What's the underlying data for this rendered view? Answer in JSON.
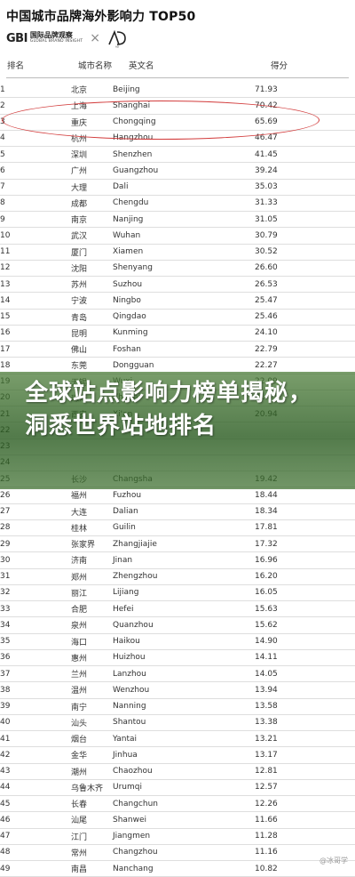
{
  "title": "中国城市品牌海外影响力 TOP50",
  "logos": {
    "gbi_mark": "GBI",
    "gbi_cn": "国际品牌观察",
    "gbi_en": "GLOBAL BRAND INSIGHT",
    "separator": "×",
    "partner_mark": "AD"
  },
  "columns": {
    "rank": "排名",
    "city_cn": "城市名称",
    "city_en": "英文名",
    "score": "得分"
  },
  "rows": [
    {
      "rank": "1",
      "cn": "北京",
      "en": "Beijing",
      "score": "71.93"
    },
    {
      "rank": "2",
      "cn": "上海",
      "en": "Shanghai",
      "score": "70.42"
    },
    {
      "rank": "3",
      "cn": "重庆",
      "en": "Chongqing",
      "score": "65.69"
    },
    {
      "rank": "4",
      "cn": "杭州",
      "en": "Hangzhou",
      "score": "46.47"
    },
    {
      "rank": "5",
      "cn": "深圳",
      "en": "Shenzhen",
      "score": "41.45"
    },
    {
      "rank": "6",
      "cn": "广州",
      "en": "Guangzhou",
      "score": "39.24"
    },
    {
      "rank": "7",
      "cn": "大理",
      "en": "Dali",
      "score": "35.03"
    },
    {
      "rank": "8",
      "cn": "成都",
      "en": "Chengdu",
      "score": "31.33"
    },
    {
      "rank": "9",
      "cn": "南京",
      "en": "Nanjing",
      "score": "31.05"
    },
    {
      "rank": "10",
      "cn": "武汉",
      "en": "Wuhan",
      "score": "30.79"
    },
    {
      "rank": "11",
      "cn": "厦门",
      "en": "Xiamen",
      "score": "30.52"
    },
    {
      "rank": "12",
      "cn": "沈阳",
      "en": "Shenyang",
      "score": "26.60"
    },
    {
      "rank": "13",
      "cn": "苏州",
      "en": "Suzhou",
      "score": "26.53"
    },
    {
      "rank": "14",
      "cn": "宁波",
      "en": "Ningbo",
      "score": "25.47"
    },
    {
      "rank": "15",
      "cn": "青岛",
      "en": "Qingdao",
      "score": "25.46"
    },
    {
      "rank": "16",
      "cn": "昆明",
      "en": "Kunming",
      "score": "24.10"
    },
    {
      "rank": "17",
      "cn": "佛山",
      "en": "Foshan",
      "score": "22.79"
    },
    {
      "rank": "18",
      "cn": "东莞",
      "en": "Dongguan",
      "score": "22.27"
    },
    {
      "rank": "19",
      "cn": "无锡",
      "en": "Wuxi",
      "score": "22.09"
    },
    {
      "rank": "20",
      "cn": "珠海",
      "en": "Zhuhai",
      "score": "21.85"
    },
    {
      "rank": "21",
      "cn": "西安",
      "en": "Xi'an",
      "score": "20.94"
    },
    {
      "rank": "22",
      "cn": "",
      "en": "",
      "score": ""
    },
    {
      "rank": "23",
      "cn": "",
      "en": "",
      "score": ""
    },
    {
      "rank": "24",
      "cn": "",
      "en": "",
      "score": ""
    },
    {
      "rank": "25",
      "cn": "长沙",
      "en": "Changsha",
      "score": "19.42"
    },
    {
      "rank": "26",
      "cn": "福州",
      "en": "Fuzhou",
      "score": "18.44"
    },
    {
      "rank": "27",
      "cn": "大连",
      "en": "Dalian",
      "score": "18.34"
    },
    {
      "rank": "28",
      "cn": "桂林",
      "en": "Guilin",
      "score": "17.81"
    },
    {
      "rank": "29",
      "cn": "张家界",
      "en": "Zhangjiajie",
      "score": "17.32"
    },
    {
      "rank": "30",
      "cn": "济南",
      "en": "Jinan",
      "score": "16.96"
    },
    {
      "rank": "31",
      "cn": "郑州",
      "en": "Zhengzhou",
      "score": "16.20"
    },
    {
      "rank": "32",
      "cn": "丽江",
      "en": "Lijiang",
      "score": "16.05"
    },
    {
      "rank": "33",
      "cn": "合肥",
      "en": "Hefei",
      "score": "15.63"
    },
    {
      "rank": "34",
      "cn": "泉州",
      "en": "Quanzhou",
      "score": "15.62"
    },
    {
      "rank": "35",
      "cn": "海口",
      "en": "Haikou",
      "score": "14.90"
    },
    {
      "rank": "36",
      "cn": "惠州",
      "en": "Huizhou",
      "score": "14.11"
    },
    {
      "rank": "37",
      "cn": "兰州",
      "en": "Lanzhou",
      "score": "14.05"
    },
    {
      "rank": "38",
      "cn": "温州",
      "en": "Wenzhou",
      "score": "13.94"
    },
    {
      "rank": "39",
      "cn": "南宁",
      "en": "Nanning",
      "score": "13.58"
    },
    {
      "rank": "40",
      "cn": "汕头",
      "en": "Shantou",
      "score": "13.38"
    },
    {
      "rank": "41",
      "cn": "烟台",
      "en": "Yantai",
      "score": "13.21"
    },
    {
      "rank": "42",
      "cn": "金华",
      "en": "Jinhua",
      "score": "13.17"
    },
    {
      "rank": "43",
      "cn": "潮州",
      "en": "Chaozhou",
      "score": "12.81"
    },
    {
      "rank": "44",
      "cn": "乌鲁木齐",
      "en": "Urumqi",
      "score": "12.57"
    },
    {
      "rank": "45",
      "cn": "长春",
      "en": "Changchun",
      "score": "12.26"
    },
    {
      "rank": "46",
      "cn": "汕尾",
      "en": "Shanwei",
      "score": "11.66"
    },
    {
      "rank": "47",
      "cn": "江门",
      "en": "Jiangmen",
      "score": "11.28"
    },
    {
      "rank": "48",
      "cn": "常州",
      "en": "Changzhou",
      "score": "11.16"
    },
    {
      "rank": "49",
      "cn": "南昌",
      "en": "Nanchang",
      "score": "10.82"
    }
  ],
  "overlay_text": "全球站点影响力榜单揭秘，洞悉世界站地排名",
  "watermark": "@冰哥学"
}
